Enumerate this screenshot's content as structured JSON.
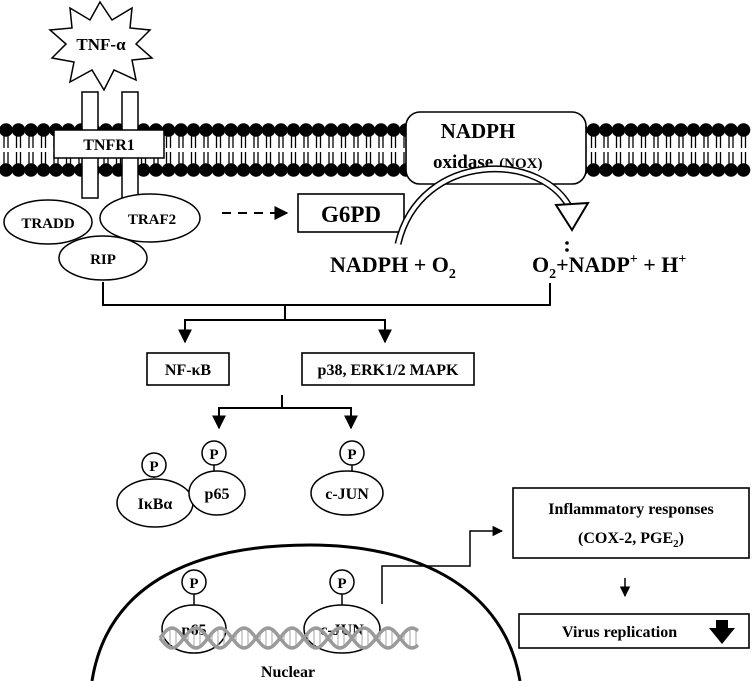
{
  "ligand": {
    "label": "TNF-α"
  },
  "receptor": {
    "label": "TNFR1"
  },
  "adaptors": {
    "tradd": "TRADD",
    "traf2": "TRAF2",
    "rip": "RIP"
  },
  "nox": {
    "line1": "NADPH",
    "line2": "oxidase",
    "abbr": "(NOX)"
  },
  "g6pd": {
    "label": "G6PD"
  },
  "reaction": {
    "left_main": "NADPH + O",
    "left_sub": "2",
    "right_o": "O",
    "right_sub": "2",
    "right_nadp": "+NADP",
    "right_sup1": "+",
    "right_h": " + H",
    "right_sup2": "+"
  },
  "pathways": {
    "nfkb": "NF-κB",
    "mapk": "p38, ERK1/2 MAPK"
  },
  "proteins": {
    "ikba": "IκBα",
    "p65": "p65",
    "cjun": "c-JUN",
    "phospho": "P",
    "nuclear_p65": "p65",
    "nuclear_cjun": "c-JUN"
  },
  "nucleus": {
    "label": "Nuclear"
  },
  "outcomes": {
    "inflammatory_line1": "Inflammatory responses",
    "inflammatory_line2_pre": "(COX-2, PGE",
    "inflammatory_line2_sub": "2",
    "inflammatory_line2_post": ")",
    "virus": "Virus replication"
  },
  "colors": {
    "ink": "#000000",
    "paper": "#ffffff",
    "dna": "#9a9a9a"
  }
}
